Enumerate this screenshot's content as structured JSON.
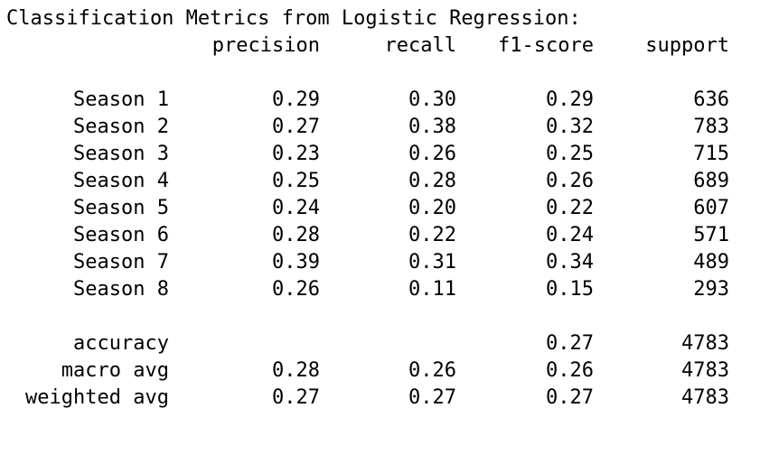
{
  "title": "Classification Metrics from Logistic Regression:",
  "headers": [
    "precision",
    "recall",
    "f1-score",
    "support"
  ],
  "classes": [
    {
      "label": "Season 1",
      "precision": "0.29",
      "recall": "0.30",
      "f1": "0.29",
      "support": "636"
    },
    {
      "label": "Season 2",
      "precision": "0.27",
      "recall": "0.38",
      "f1": "0.32",
      "support": "783"
    },
    {
      "label": "Season 3",
      "precision": "0.23",
      "recall": "0.26",
      "f1": "0.25",
      "support": "715"
    },
    {
      "label": "Season 4",
      "precision": "0.25",
      "recall": "0.28",
      "f1": "0.26",
      "support": "689"
    },
    {
      "label": "Season 5",
      "precision": "0.24",
      "recall": "0.20",
      "f1": "0.22",
      "support": "607"
    },
    {
      "label": "Season 6",
      "precision": "0.28",
      "recall": "0.22",
      "f1": "0.24",
      "support": "571"
    },
    {
      "label": "Season 7",
      "precision": "0.39",
      "recall": "0.31",
      "f1": "0.34",
      "support": "489"
    },
    {
      "label": "Season 8",
      "precision": "0.26",
      "recall": "0.11",
      "f1": "0.15",
      "support": "293"
    }
  ],
  "summary": [
    {
      "label": "accuracy",
      "precision": "",
      "recall": "",
      "f1": "0.27",
      "support": "4783"
    },
    {
      "label": "macro avg",
      "precision": "0.28",
      "recall": "0.26",
      "f1": "0.26",
      "support": "4783"
    },
    {
      "label": "weighted avg",
      "precision": "0.27",
      "recall": "0.27",
      "f1": "0.27",
      "support": "4783"
    }
  ]
}
